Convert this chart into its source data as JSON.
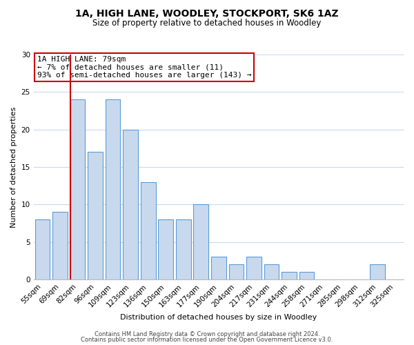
{
  "title": "1A, HIGH LANE, WOODLEY, STOCKPORT, SK6 1AZ",
  "subtitle": "Size of property relative to detached houses in Woodley",
  "xlabel": "Distribution of detached houses by size in Woodley",
  "ylabel": "Number of detached properties",
  "bar_labels": [
    "55sqm",
    "69sqm",
    "82sqm",
    "96sqm",
    "109sqm",
    "123sqm",
    "136sqm",
    "150sqm",
    "163sqm",
    "177sqm",
    "190sqm",
    "204sqm",
    "217sqm",
    "231sqm",
    "244sqm",
    "258sqm",
    "271sqm",
    "285sqm",
    "298sqm",
    "312sqm",
    "325sqm"
  ],
  "bar_values": [
    8,
    9,
    24,
    17,
    24,
    20,
    13,
    8,
    8,
    10,
    3,
    2,
    3,
    2,
    1,
    1,
    0,
    0,
    0,
    2,
    0
  ],
  "bar_color": "#c8d9ee",
  "bar_edge_color": "#5b9bd5",
  "vline_color": "#cc0000",
  "vline_x_index": 2,
  "ylim": [
    0,
    30
  ],
  "yticks": [
    0,
    5,
    10,
    15,
    20,
    25,
    30
  ],
  "annotation_text": "1A HIGH LANE: 79sqm\n← 7% of detached houses are smaller (11)\n93% of semi-detached houses are larger (143) →",
  "annotation_box_color": "#ffffff",
  "annotation_box_edge": "#cc0000",
  "footer_line1": "Contains HM Land Registry data © Crown copyright and database right 2024.",
  "footer_line2": "Contains public sector information licensed under the Open Government Licence v3.0.",
  "bg_color": "#ffffff",
  "grid_color": "#c8d9ee",
  "title_fontsize": 10,
  "subtitle_fontsize": 8.5,
  "xlabel_fontsize": 8,
  "ylabel_fontsize": 8,
  "tick_fontsize": 7.5,
  "footer_fontsize": 6.0,
  "ann_fontsize": 8
}
